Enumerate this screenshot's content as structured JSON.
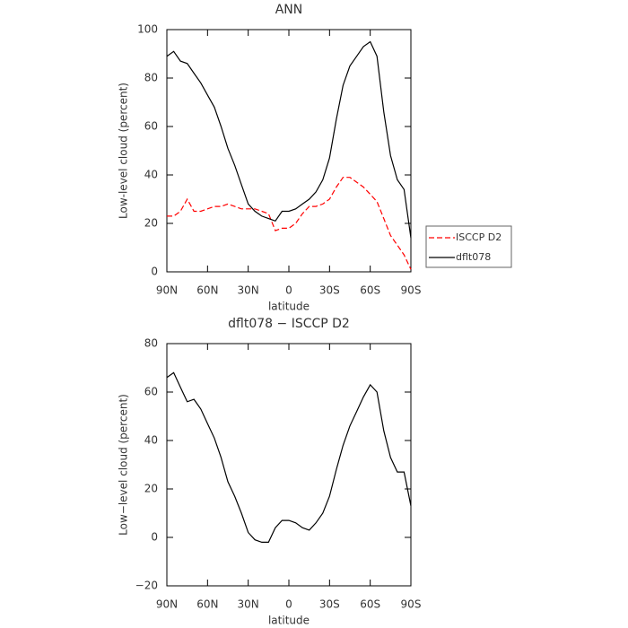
{
  "chart_data": [
    {
      "type": "line",
      "title": "ANN",
      "xlabel": "latitude",
      "ylabel": "Low-level cloud (percent)",
      "x": [
        90,
        85,
        80,
        75,
        70,
        65,
        60,
        55,
        50,
        45,
        40,
        35,
        30,
        25,
        20,
        15,
        10,
        5,
        0,
        -5,
        -10,
        -15,
        -20,
        -25,
        -30,
        -35,
        -40,
        -45,
        -50,
        -55,
        -60,
        -65,
        -70,
        -75,
        -80,
        -85,
        -90
      ],
      "series": [
        {
          "name": "ISCCP D2",
          "color": "#ff0000",
          "style": "dashed",
          "values": [
            23,
            23,
            25,
            30,
            25,
            25,
            26,
            27,
            27,
            28,
            27,
            26,
            26,
            26,
            25,
            24,
            17,
            18,
            18,
            20,
            24,
            27,
            27,
            28,
            30,
            35,
            39,
            39,
            37,
            35,
            32,
            29,
            22,
            15,
            11,
            7,
            1
          ]
        },
        {
          "name": "dflt078",
          "color": "#000000",
          "style": "solid",
          "values": [
            89,
            91,
            87,
            86,
            82,
            78,
            73,
            68,
            60,
            51,
            44,
            36,
            28,
            25,
            23,
            22,
            21,
            25,
            25,
            26,
            28,
            30,
            33,
            38,
            47,
            63,
            77,
            85,
            89,
            93,
            95,
            89,
            66,
            48,
            38,
            34,
            14
          ]
        }
      ],
      "xlim": [
        90,
        -90
      ],
      "xticks": [
        {
          "value": 90,
          "label": "90N"
        },
        {
          "value": 60,
          "label": "60N"
        },
        {
          "value": 30,
          "label": "30N"
        },
        0,
        {
          "value": -30,
          "label": "30S"
        },
        {
          "value": -60,
          "label": "60S"
        },
        {
          "value": -90,
          "label": "90S"
        }
      ],
      "ylim": [
        0,
        100
      ],
      "yticks": [
        0,
        20,
        40,
        60,
        80,
        100
      ]
    },
    {
      "type": "line",
      "title": "dflt078 − ISCCP D2",
      "xlabel": "latitude",
      "ylabel": "Low−level cloud (percent)",
      "x": [
        90,
        85,
        80,
        75,
        70,
        65,
        60,
        55,
        50,
        45,
        40,
        35,
        30,
        25,
        20,
        15,
        10,
        5,
        0,
        -5,
        -10,
        -15,
        -20,
        -25,
        -30,
        -35,
        -40,
        -45,
        -50,
        -55,
        -60,
        -65,
        -70,
        -75,
        -80,
        -85,
        -90
      ],
      "series": [
        {
          "color": "#000000",
          "style": "solid",
          "values": [
            66,
            68,
            62,
            56,
            57,
            53,
            47,
            41,
            33,
            23,
            17,
            10,
            2,
            -1,
            -2,
            -2,
            4,
            7,
            7,
            6,
            4,
            3,
            6,
            10,
            17,
            28,
            38,
            46,
            52,
            58,
            63,
            60,
            44,
            33,
            27,
            27,
            13
          ]
        }
      ],
      "xlim": [
        90,
        -90
      ],
      "xticks": [
        {
          "value": 90,
          "label": "90N"
        },
        {
          "value": 60,
          "label": "60N"
        },
        {
          "value": 30,
          "label": "30N"
        },
        0,
        {
          "value": -30,
          "label": "30S"
        },
        {
          "value": -60,
          "label": "60S"
        },
        {
          "value": -90,
          "label": "90S"
        }
      ],
      "ylim": [
        -20,
        80
      ],
      "yticks": [
        {
          "value": -20,
          "label": "−20"
        },
        0,
        20,
        40,
        60,
        80
      ]
    }
  ]
}
